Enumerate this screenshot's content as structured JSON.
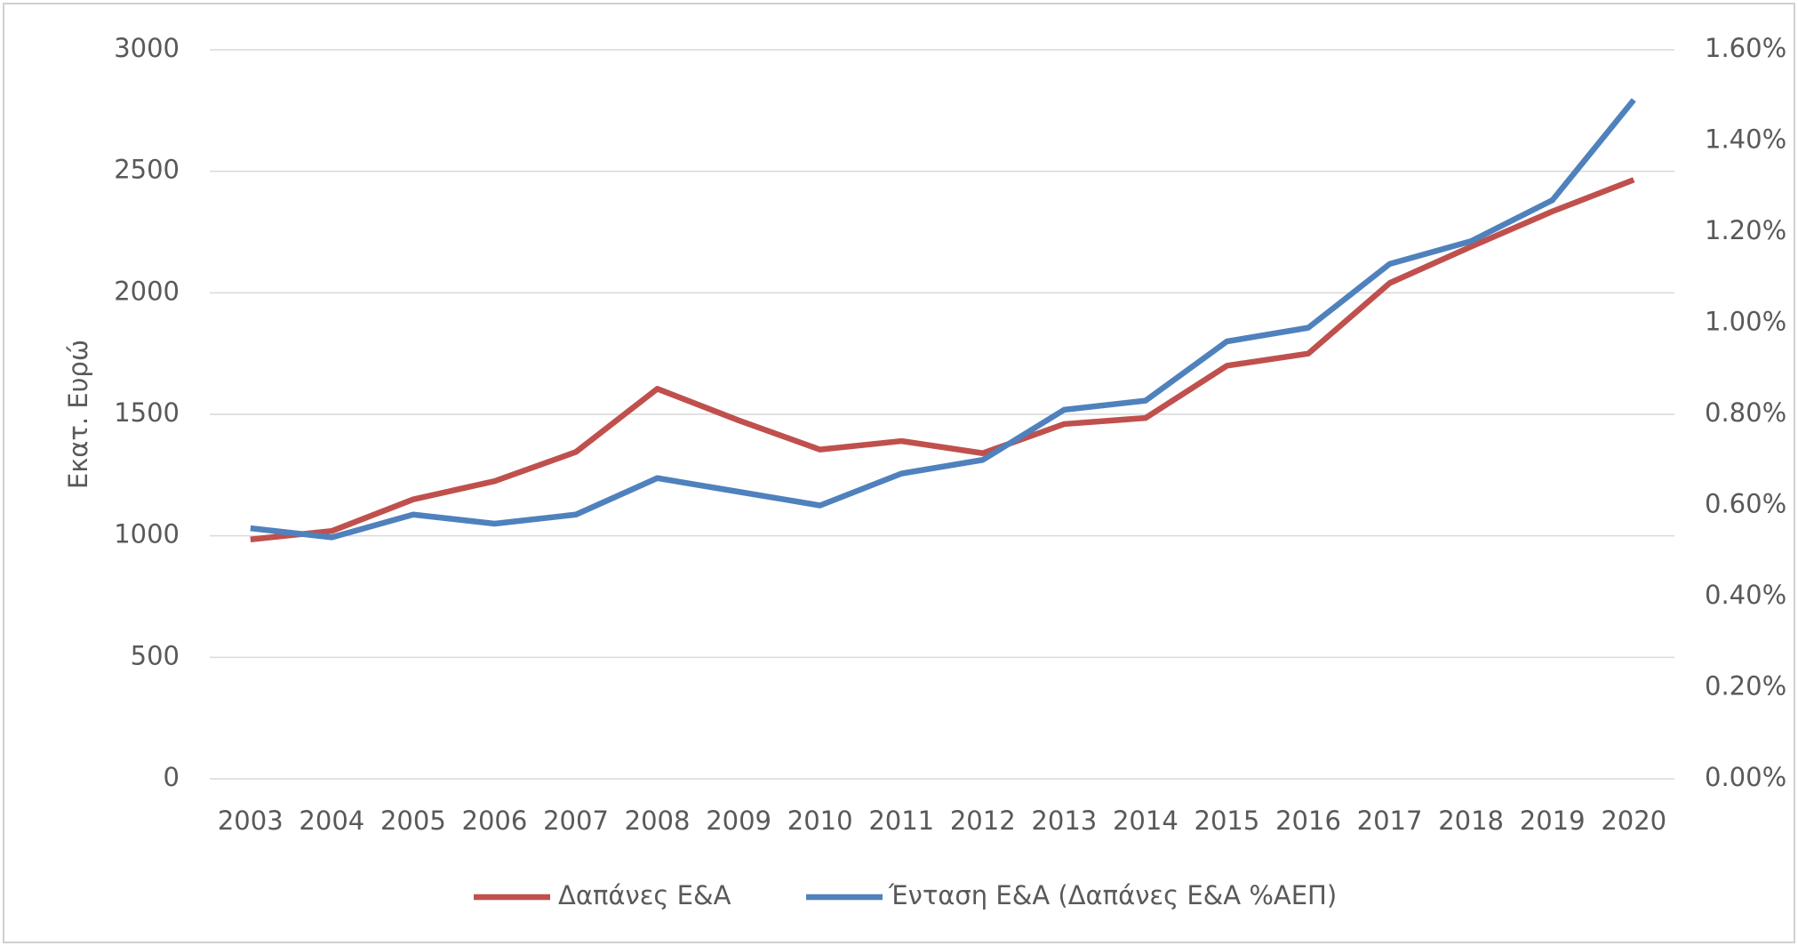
{
  "chart_data": {
    "type": "line",
    "y_label": "Εκατ. Ευρώ",
    "categories": [
      "2003",
      "2004",
      "2005",
      "2006",
      "2007",
      "2008",
      "2009",
      "2010",
      "2011",
      "2012",
      "2013",
      "2014",
      "2015",
      "2016",
      "2017",
      "2018",
      "2019",
      "2020"
    ],
    "series": [
      {
        "name": "Δαπάνες Ε&Α",
        "color": "#c0504d",
        "axis": "y",
        "values": [
          985,
          1020,
          1150,
          1225,
          1345,
          1605,
          1475,
          1355,
          1390,
          1340,
          1460,
          1485,
          1700,
          1750,
          2040,
          2190,
          2335,
          2465
        ]
      },
      {
        "name": "Ένταση Ε&Α (Δαπάνες Ε&Α %ΑΕΠ)",
        "color": "#4f81bd",
        "axis": "y2",
        "values": [
          0.55,
          0.53,
          0.58,
          0.56,
          0.58,
          0.66,
          0.63,
          0.6,
          0.67,
          0.7,
          0.81,
          0.83,
          0.96,
          0.99,
          1.13,
          1.18,
          1.27,
          1.49
        ]
      }
    ],
    "ylim": [
      0,
      3000
    ],
    "yticks": [
      0,
      500,
      1000,
      1500,
      2000,
      2500,
      3000
    ],
    "y2lim": [
      0,
      1.6
    ],
    "y2ticks": [
      {
        "value": 0,
        "label": "0.00%"
      },
      {
        "value": 0.2,
        "label": "0.20%"
      },
      {
        "value": 0.4,
        "label": "0.40%"
      },
      {
        "value": 0.6,
        "label": "0.60%"
      },
      {
        "value": 0.8,
        "label": "0.80%"
      },
      {
        "value": 1.0,
        "label": "1.00%"
      },
      {
        "value": 1.2,
        "label": "1.20%"
      },
      {
        "value": 1.4,
        "label": "1.40%"
      },
      {
        "value": 1.6,
        "label": "1.60%"
      }
    ],
    "grid": true,
    "legend": "bottom"
  }
}
